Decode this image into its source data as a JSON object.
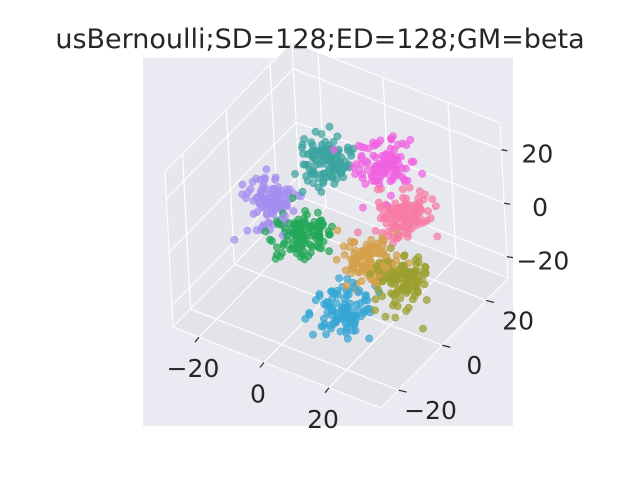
{
  "chart_data": {
    "type": "scatter",
    "projection": "3d",
    "title": "usBernoulli;SD=128;ED=128;GM=beta",
    "xlabel": "",
    "ylabel": "",
    "zlabel": "",
    "xlim": [
      -28,
      36
    ],
    "ylim": [
      -28,
      30
    ],
    "zlim": [
      -28,
      30
    ],
    "x_ticks": [
      {
        "value": -20,
        "label": "−20"
      },
      {
        "value": 0,
        "label": "0"
      },
      {
        "value": 20,
        "label": "20"
      }
    ],
    "y_ticks": [
      {
        "value": -20,
        "label": "−20"
      },
      {
        "value": 0,
        "label": "0"
      },
      {
        "value": 20,
        "label": "20"
      }
    ],
    "z_ticks": [
      {
        "value": -20,
        "label": "−20"
      },
      {
        "value": 0,
        "label": "0"
      },
      {
        "value": 20,
        "label": "20"
      }
    ],
    "grid": true,
    "legend": "none",
    "pane_color": "#eaeaf2",
    "grid_color": "#ffffff",
    "series": [
      {
        "color": "#3ba3a0",
        "center": [
          -10,
          17,
          5
        ],
        "spread": 3.5,
        "count": 110
      },
      {
        "color": "#f062e0",
        "center": [
          10,
          15,
          14
        ],
        "spread": 3.5,
        "count": 110
      },
      {
        "color": "#f77ba3",
        "center": [
          17,
          12,
          2
        ],
        "spread": 3.5,
        "count": 110
      },
      {
        "color": "#a58df0",
        "center": [
          -19,
          5,
          -5
        ],
        "spread": 3.5,
        "count": 110
      },
      {
        "color": "#22a858",
        "center": [
          -6,
          0,
          -7
        ],
        "spread": 3.5,
        "count": 110
      },
      {
        "color": "#d4a04a",
        "center": [
          13,
          2,
          -9
        ],
        "spread": 3.5,
        "count": 110
      },
      {
        "color": "#9ba02e",
        "center": [
          25,
          0,
          -9
        ],
        "spread": 3.5,
        "count": 110
      },
      {
        "color": "#36a6d4",
        "center": [
          12,
          -9,
          -20
        ],
        "spread": 3.5,
        "count": 110
      }
    ]
  }
}
